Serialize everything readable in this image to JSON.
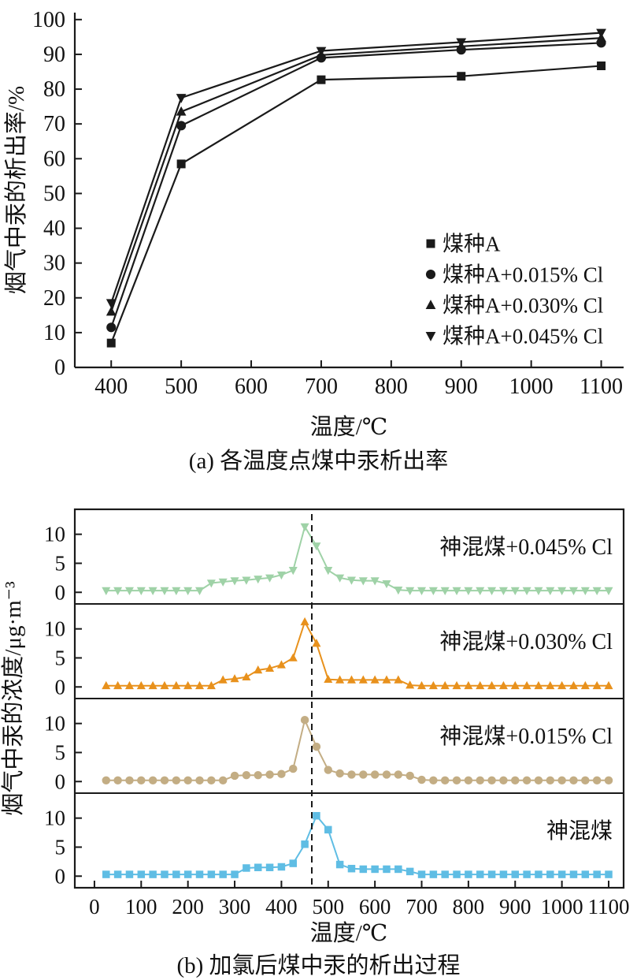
{
  "page": {
    "caption_a": "(a) 各温度点煤中汞析出率",
    "caption_b": "(b) 加氯后煤中汞的析出过程"
  },
  "colors": {
    "axis": "#1a1a1a",
    "series_black": "#1a1a1a",
    "green": "#9fd2a7",
    "orange": "#e8911c",
    "tan": "#c3ad84",
    "blue": "#5fbde4"
  },
  "chart_data": [
    {
      "type": "line",
      "title": "",
      "xlabel": "温度/℃",
      "ylabel": "烟气中汞的析出率/%",
      "xlim": [
        348,
        1132
      ],
      "ylim": [
        0,
        102
      ],
      "xticks": [
        400,
        500,
        600,
        700,
        800,
        900,
        1000,
        1100
      ],
      "yticks": [
        0,
        10,
        20,
        30,
        40,
        50,
        60,
        70,
        80,
        90,
        100
      ],
      "grid": false,
      "legend_position": "inside-right",
      "x": [
        400,
        500,
        700,
        900,
        1100
      ],
      "series": [
        {
          "name": "煤种A",
          "marker": "square",
          "color": "#1a1a1a",
          "values": [
            7,
            58.5,
            82.7,
            83.7,
            86.7
          ]
        },
        {
          "name": "煤种A+0.015% Cl",
          "marker": "circle",
          "color": "#1a1a1a",
          "values": [
            11.5,
            69.5,
            89,
            91.3,
            93.3
          ]
        },
        {
          "name": "煤种A+0.030% Cl",
          "marker": "triangle-up",
          "color": "#1a1a1a",
          "values": [
            16,
            73.5,
            89.8,
            92.3,
            94.7
          ]
        },
        {
          "name": "煤种A+0.045% Cl",
          "marker": "triangle-down",
          "color": "#1a1a1a",
          "values": [
            18.5,
            77.5,
            91,
            93.5,
            96.2
          ]
        }
      ]
    },
    {
      "type": "line",
      "title": "",
      "xlabel": "温度/℃",
      "ylabel": "烟气中汞的浓度/μg·m⁻³",
      "xlim": [
        -42,
        1132
      ],
      "xticks": [
        0,
        100,
        200,
        300,
        400,
        500,
        600,
        700,
        800,
        900,
        1000,
        1100
      ],
      "yticks": [
        0,
        5,
        10
      ],
      "panel_ylim": [
        -2,
        14.3
      ],
      "dashed_line_x": 465,
      "grid": false,
      "x": [
        25,
        50,
        75,
        100,
        125,
        150,
        175,
        200,
        225,
        250,
        275,
        300,
        325,
        350,
        375,
        400,
        425,
        450,
        475,
        500,
        525,
        550,
        575,
        600,
        625,
        650,
        675,
        700,
        725,
        750,
        775,
        800,
        825,
        850,
        875,
        900,
        925,
        950,
        975,
        1000,
        1025,
        1050,
        1075,
        1100
      ],
      "panels": [
        {
          "label": "神混煤+0.045% Cl",
          "marker": "triangle-down",
          "color": "#9fd2a7",
          "values": [
            0.3,
            0.3,
            0.3,
            0.3,
            0.3,
            0.3,
            0.3,
            0.3,
            0.3,
            1.6,
            1.8,
            2.0,
            2.1,
            2.3,
            2.5,
            3.0,
            3.8,
            11.3,
            8.0,
            3.8,
            2.5,
            2.1,
            2.0,
            2.0,
            1.5,
            0.4,
            0.3,
            0.3,
            0.3,
            0.3,
            0.3,
            0.3,
            0.3,
            0.3,
            0.3,
            0.3,
            0.3,
            0.3,
            0.3,
            0.3,
            0.3,
            0.3,
            0.3,
            0.3
          ]
        },
        {
          "label": "神混煤+0.030% Cl",
          "marker": "triangle-up",
          "color": "#e8911c",
          "values": [
            0.2,
            0.2,
            0.2,
            0.2,
            0.2,
            0.2,
            0.2,
            0.2,
            0.2,
            0.2,
            1.2,
            1.4,
            1.7,
            2.9,
            3.2,
            3.8,
            5.0,
            11.2,
            7.5,
            1.3,
            1.2,
            1.2,
            1.2,
            1.2,
            1.2,
            1.2,
            0.3,
            0.2,
            0.2,
            0.2,
            0.2,
            0.2,
            0.2,
            0.2,
            0.2,
            0.2,
            0.2,
            0.2,
            0.2,
            0.2,
            0.2,
            0.2,
            0.2,
            0.2
          ]
        },
        {
          "label": "神混煤+0.015% Cl",
          "marker": "circle",
          "color": "#c3ad84",
          "values": [
            0.2,
            0.2,
            0.2,
            0.2,
            0.2,
            0.2,
            0.2,
            0.2,
            0.2,
            0.2,
            0.2,
            1.0,
            1.1,
            1.1,
            1.2,
            1.3,
            2.2,
            10.6,
            6.0,
            2.0,
            1.4,
            1.2,
            1.2,
            1.2,
            1.2,
            1.2,
            1.0,
            0.3,
            0.2,
            0.2,
            0.2,
            0.2,
            0.2,
            0.2,
            0.2,
            0.2,
            0.2,
            0.2,
            0.2,
            0.2,
            0.2,
            0.2,
            0.2,
            0.2
          ]
        },
        {
          "label": "神混煤",
          "marker": "square",
          "color": "#5fbde4",
          "values": [
            0.3,
            0.3,
            0.3,
            0.3,
            0.3,
            0.3,
            0.3,
            0.3,
            0.3,
            0.3,
            0.3,
            0.3,
            1.4,
            1.5,
            1.5,
            1.6,
            2.2,
            5.5,
            10.4,
            8.0,
            2.0,
            1.3,
            1.2,
            1.2,
            1.2,
            1.2,
            0.8,
            0.3,
            0.3,
            0.3,
            0.3,
            0.3,
            0.3,
            0.3,
            0.3,
            0.3,
            0.3,
            0.3,
            0.3,
            0.3,
            0.3,
            0.3,
            0.3,
            0.3
          ]
        }
      ]
    }
  ]
}
